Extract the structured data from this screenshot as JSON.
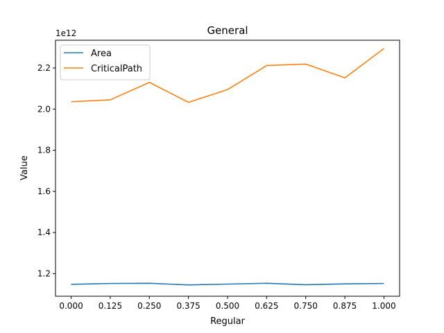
{
  "chart_data": {
    "type": "line",
    "title": "General",
    "xlabel": "Regular",
    "ylabel": "Value",
    "y_offset_label": "1e12",
    "x": [
      0.0,
      0.125,
      0.25,
      0.375,
      0.5,
      0.625,
      0.75,
      0.875,
      1.0
    ],
    "x_tick_labels": [
      "0.000",
      "0.125",
      "0.250",
      "0.375",
      "0.500",
      "0.625",
      "0.750",
      "0.875",
      "1.000"
    ],
    "y_ticks": [
      1.2,
      1.4,
      1.6,
      1.8,
      2.0,
      2.2
    ],
    "y_tick_labels": [
      "1.2",
      "1.4",
      "1.6",
      "1.8",
      "2.0",
      "2.2"
    ],
    "xlim": [
      -0.05,
      1.05
    ],
    "ylim": [
      1.09,
      2.335
    ],
    "grid": false,
    "legend_position": "top-left",
    "series": [
      {
        "name": "Area",
        "color": "#1f77b4",
        "values": [
          1.148,
          1.152,
          1.153,
          1.145,
          1.149,
          1.153,
          1.146,
          1.15,
          1.152
        ]
      },
      {
        "name": "CriticalPath",
        "color": "#ff7f0e",
        "values": [
          2.036,
          2.045,
          2.13,
          2.033,
          2.095,
          2.212,
          2.219,
          2.152,
          2.295
        ]
      }
    ]
  }
}
